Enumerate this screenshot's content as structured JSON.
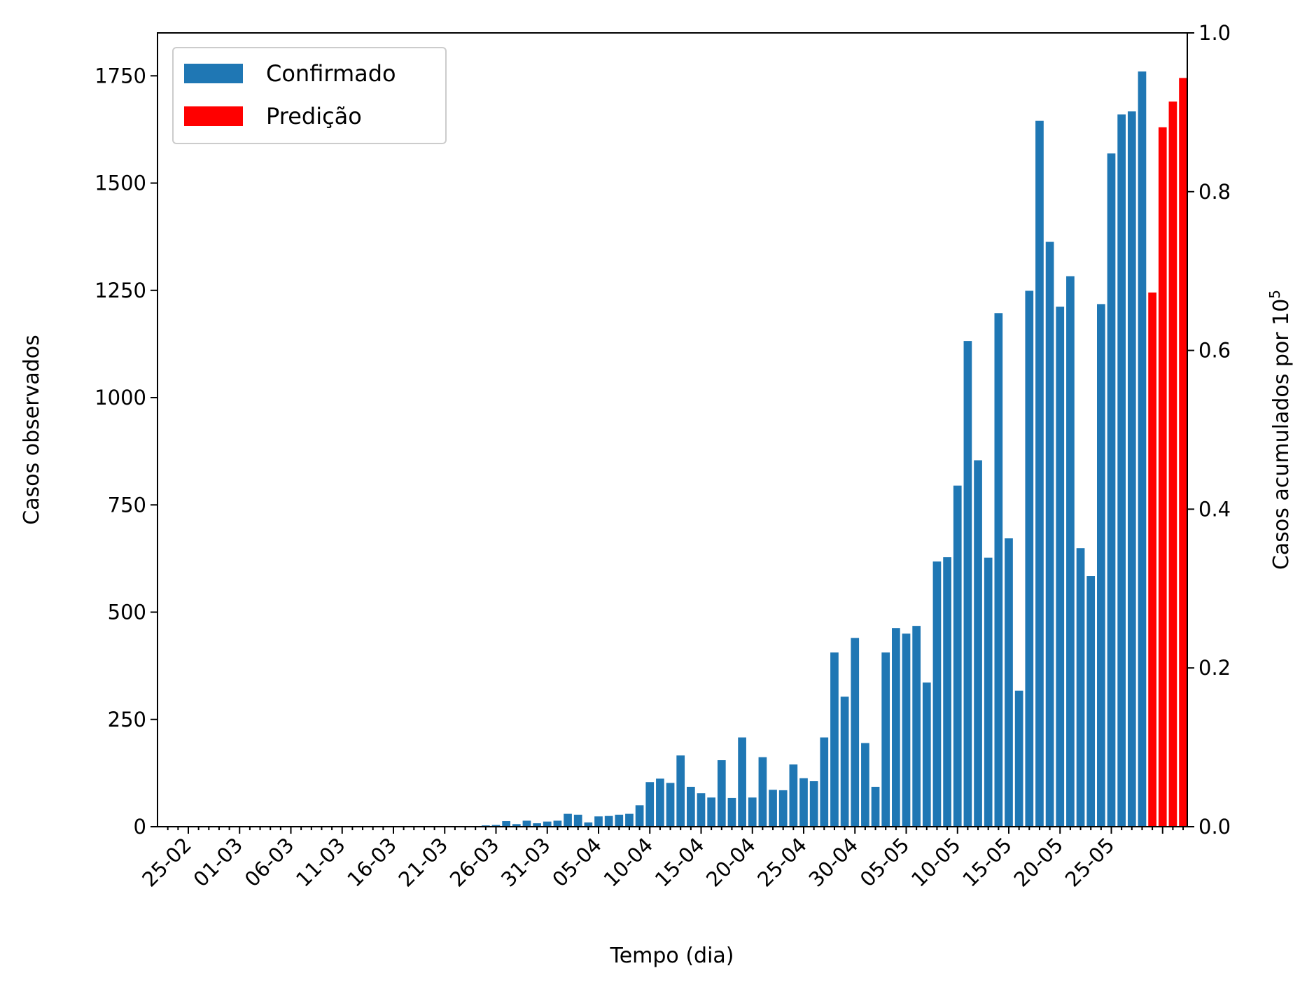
{
  "chart_data": {
    "type": "bar",
    "xlabel": "Tempo (dia)",
    "ylabel": "Casos observados",
    "ylabel_right": "Casos acumulados por 10",
    "ylabel_right_exponent": "5",
    "ylim": [
      0,
      1850
    ],
    "ylim_right": [
      0,
      1.0
    ],
    "yticks": [
      "0",
      "250",
      "500",
      "750",
      "1000",
      "1250",
      "1500",
      "1750"
    ],
    "yticks_right": [
      "0.0",
      "0.2",
      "0.4",
      "0.6",
      "0.8",
      "1.0"
    ],
    "xticks": [
      "25-02",
      "01-03",
      "06-03",
      "11-03",
      "16-03",
      "21-03",
      "26-03",
      "31-03",
      "05-04",
      "10-04",
      "15-04",
      "20-04",
      "25-04",
      "30-04",
      "05-05",
      "10-05",
      "15-05",
      "20-05",
      "25-05"
    ],
    "legend": {
      "position": "top-left",
      "entries": [
        "Confirmado",
        "Predição"
      ]
    },
    "series": [
      {
        "name": "Confirmado",
        "color": "#1f77b4",
        "start_day": 0,
        "values": [
          0,
          0,
          0,
          0,
          0,
          0,
          0,
          0,
          0,
          0,
          0,
          0,
          0,
          0,
          0,
          0,
          0,
          0,
          0,
          0,
          0,
          0,
          0,
          0,
          0,
          0,
          0,
          0,
          1,
          3,
          4,
          13,
          6,
          14,
          8,
          12,
          14,
          30,
          28,
          10,
          24,
          25,
          28,
          30,
          50,
          104,
          112,
          102,
          166,
          93,
          78,
          68,
          155,
          67,
          208,
          68,
          162,
          86,
          85,
          145,
          113,
          106,
          208,
          406,
          303,
          440,
          195,
          93,
          406,
          463,
          450,
          468,
          336,
          618,
          628,
          795,
          1132,
          854,
          627,
          1197,
          672,
          317,
          1249,
          1645,
          1363,
          1212,
          1283,
          649,
          584,
          1218,
          1569,
          1660,
          1667,
          1760
        ]
      },
      {
        "name": "Predição",
        "color": "#ff0000",
        "start_day": 94,
        "values": [
          1245,
          1630,
          1690,
          1745
        ]
      }
    ]
  }
}
